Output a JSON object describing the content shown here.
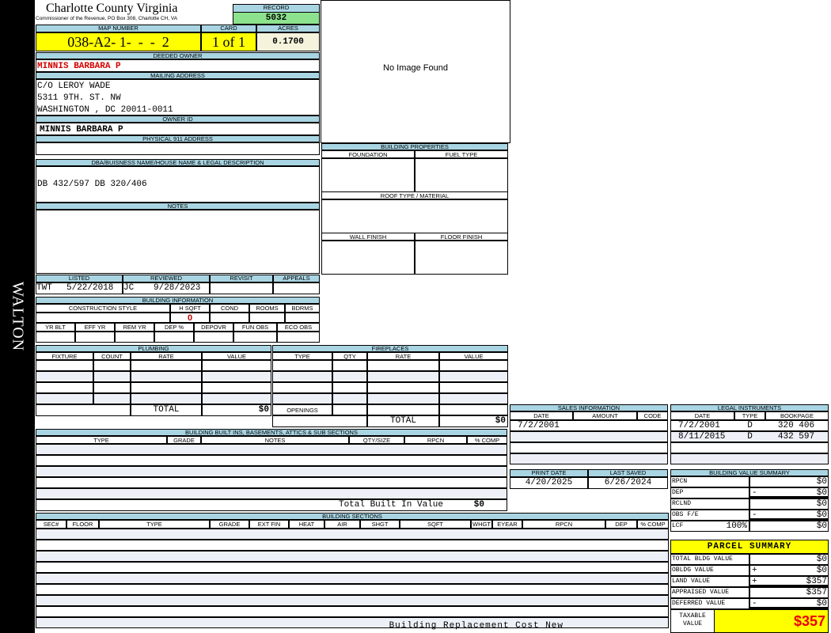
{
  "side_label": "WALTON",
  "header": {
    "title": "Charlotte County Virginia",
    "subtitle": "Commissioner of the Revenue, PO Box 308, Charlotte CH, VA",
    "record_label": "RECORD",
    "record": "5032",
    "map_label": "MAP NUMBER",
    "map_number": "038-A2- 1-  -  -  2",
    "card_label": "CARD",
    "card": "1 of 1",
    "acres_label": "ACRES",
    "acres": "0.1700"
  },
  "owner": {
    "deeded_label": "DEEDED OWNER",
    "deeded": "MINNIS BARBARA P",
    "mailing_label": "MAILING ADDRESS",
    "mailing": [
      "C/O LEROY WADE",
      "5311 9TH. ST. NW",
      "WASHINGTON , DC 20011-0011"
    ],
    "owner_id_label": "OWNER ID",
    "owner_id": "MINNIS BARBARA P",
    "physical_label": "PHYSICAL 911 ADDRESS"
  },
  "image": {
    "text": "No Image Found"
  },
  "legal": {
    "label": "DBA/BUISNESS NAME/HOUSE NAME & LEGAL DESCRIPTION",
    "text": "DB 432/597 DB 320/406"
  },
  "notes": {
    "label": "NOTES"
  },
  "props": {
    "title": "BUILDING PROPERTIES",
    "foundation": "FOUNDATION",
    "fuel": "FUEL TYPE",
    "roof": "ROOF TYPE / MATERIAL",
    "wall": "WALL FINISH",
    "floor": "FLOOR FINISH"
  },
  "review": {
    "listed_label": "LISTED",
    "listed_by": "TWT",
    "listed_date": "5/22/2018",
    "reviewed_label": "REVIEWED",
    "reviewed_by": "JC",
    "reviewed_date": "9/28/2023",
    "revisit_label": "REVISIT",
    "appeals_label": "APPEALS"
  },
  "bldg": {
    "title": "BUILDING INFORMATION",
    "cols1": [
      "CONSTRUCTION STYLE",
      "H SQFT",
      "COND",
      "ROOMS",
      "BDRMS"
    ],
    "hsqft": "0",
    "cols2": [
      "YR BLT",
      "EFF YR",
      "REM YR",
      "DEP %",
      "DEPOVR",
      "FUN OBS",
      "ECO OBS"
    ]
  },
  "plumbing": {
    "title": "PLUMBING",
    "cols": [
      "FIXTURE",
      "COUNT",
      "RATE",
      "VALUE"
    ],
    "total_label": "TOTAL",
    "total": "$0"
  },
  "fireplaces": {
    "title": "FIREPLACES",
    "cols": [
      "TYPE",
      "QTY",
      "RATE",
      "VALUE"
    ],
    "openings": "OPENINGS",
    "total_label": "TOTAL",
    "total": "$0"
  },
  "builtins": {
    "title": "BUILDING BUILT INS, BASEMENTS, ATTICS & SUB SECTIONS",
    "cols": [
      "TYPE",
      "GRADE",
      "NOTES",
      "QTY/SIZE",
      "RPCN",
      "% COMP"
    ],
    "total_label": "Total Built In Value",
    "total": "$0"
  },
  "sections": {
    "title": "BUILDING SECTIONS",
    "cols": [
      "SEC#",
      "FLOOR",
      "TYPE",
      "GRADE",
      "EXT FIN",
      "HEAT",
      "AIR",
      "SHGT",
      "SQFT",
      "WHGT",
      "EYEAR",
      "RPCN",
      "DEP",
      "% COMP"
    ],
    "footer": "Building Replacement Cost New"
  },
  "sales": {
    "title": "SALES INFORMATION",
    "cols": [
      "DATE",
      "AMOUNT",
      "CODE"
    ],
    "rows": [
      [
        "7/2/2001",
        "",
        ""
      ]
    ]
  },
  "instruments": {
    "title": "LEGAL INSTRUMENTS",
    "cols": [
      "DATE",
      "TYPE",
      "BOOKPAGE"
    ],
    "rows": [
      [
        "7/2/2001",
        "D",
        "320 406"
      ],
      [
        "8/11/2015",
        "D",
        "432 597"
      ]
    ]
  },
  "dates": {
    "print_label": "PRINT DATE",
    "print": "4/20/2025",
    "saved_label": "LAST SAVED",
    "saved": "6/26/2024"
  },
  "bvs": {
    "title": "BUILDING VALUE SUMMARY",
    "rows": [
      {
        "label": "RPCN",
        "pct": "",
        "sign": "",
        "value": "$0"
      },
      {
        "label": "DEP",
        "pct": "",
        "sign": "-",
        "value": "$0"
      },
      {
        "label": "RCLND",
        "pct": "",
        "sign": "",
        "value": "$0"
      },
      {
        "label": "OBS F/E",
        "pct": "",
        "sign": "-",
        "value": "$0"
      },
      {
        "label": "LCF",
        "pct": "100%",
        "sign": "",
        "value": "$0"
      }
    ]
  },
  "parcel": {
    "title": "PARCEL SUMMARY",
    "rows": [
      {
        "label": "TOTAL BLDG VALUE",
        "sign": "",
        "value": "$0"
      },
      {
        "label": "OBLDG VALUE",
        "sign": "+",
        "value": "$0"
      },
      {
        "label": "LAND VALUE",
        "sign": "+",
        "value": "$357"
      },
      {
        "label": "APPRAISED VALUE",
        "sign": "",
        "value": "$357"
      },
      {
        "label": "DEFERRED VALUE",
        "sign": "-",
        "value": "$0"
      }
    ],
    "taxable_label": "TAXABLE VALUE",
    "taxable": "$357"
  },
  "colors": {
    "header_blue": "#a9d5e3",
    "record_green": "#8de38d",
    "highlight_yellow": "#ffff00",
    "owner_red": "#d40000"
  }
}
